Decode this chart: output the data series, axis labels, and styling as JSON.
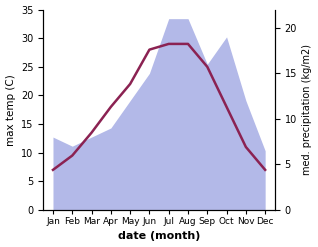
{
  "months": [
    0,
    1,
    2,
    3,
    4,
    5,
    6,
    7,
    8,
    9,
    10,
    11
  ],
  "month_labels": [
    "Jan",
    "Feb",
    "Mar",
    "Apr",
    "May",
    "Jun",
    "Jul",
    "Aug",
    "Sep",
    "Oct",
    "Nov",
    "Dec"
  ],
  "month_tick_pos": [
    0,
    1,
    2,
    3,
    4,
    5,
    6,
    7,
    8,
    9,
    10,
    11
  ],
  "temp": [
    7.0,
    9.5,
    13.5,
    18.0,
    22.0,
    28.0,
    29.0,
    29.0,
    25.0,
    18.0,
    11.0,
    7.0
  ],
  "precip": [
    8.0,
    7.0,
    8.0,
    9.0,
    12.0,
    15.0,
    21.0,
    21.0,
    16.0,
    19.0,
    12.0,
    6.5
  ],
  "temp_color": "#8b2252",
  "precip_fill_color": "#b3b9e8",
  "title": "",
  "xlabel": "date (month)",
  "ylabel_left": "max temp (C)",
  "ylabel_right": "med. precipitation (kg/m2)",
  "ylim_left": [
    0,
    35
  ],
  "ylim_right": [
    0,
    22
  ],
  "yticks_left": [
    0,
    5,
    10,
    15,
    20,
    25,
    30,
    35
  ],
  "yticks_right": [
    0,
    5,
    10,
    15,
    20
  ],
  "line_width": 1.8,
  "xlim": [
    -0.5,
    11.5
  ]
}
